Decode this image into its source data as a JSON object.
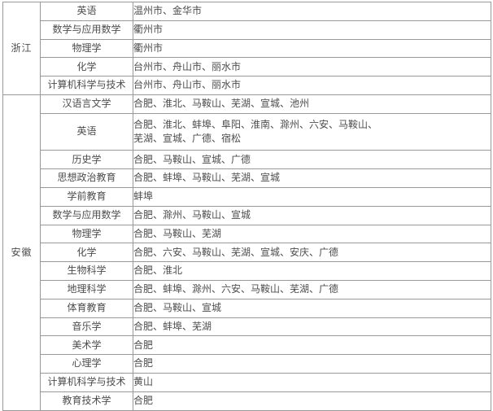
{
  "table": {
    "description": "省份-专业-城市对照表",
    "text_color": "#4d4d4d",
    "border_color": "#999999",
    "sections": [
      {
        "province": "浙江",
        "rows": [
          {
            "major": "英语",
            "cities": "温州市、金华市"
          },
          {
            "major": "数学与应用数学",
            "cities": "衢州市"
          },
          {
            "major": "物理学",
            "cities": "衢州市"
          },
          {
            "major": "化学",
            "cities": "台州市、舟山市、丽水市"
          },
          {
            "major": "计算机科学与技术",
            "cities": "台州市、舟山市、丽水市"
          }
        ]
      },
      {
        "province": "安徽",
        "rows": [
          {
            "major": "汉语言文学",
            "cities": "合肥、淮北、马鞍山、芜湖、宣城、池州"
          },
          {
            "major": "英语",
            "cities": "合肥、淮北、蚌埠、阜阳、淮南、滁州、六安、马鞍山、\n芜湖、宣城、广德、宿松",
            "tall": true
          },
          {
            "major": "历史学",
            "cities": "合肥、马鞍山、宣城、广德"
          },
          {
            "major": "思想政治教育",
            "cities": "合肥、蚌埠、马鞍山、芜湖、宣城"
          },
          {
            "major": "学前教育",
            "cities": "蚌埠"
          },
          {
            "major": "数学与应用数学",
            "cities": "合肥、滁州、马鞍山、宣城"
          },
          {
            "major": "物理学",
            "cities": "合肥、马鞍山、芜湖"
          },
          {
            "major": "化学",
            "cities": "合肥、六安、马鞍山、芜湖、宣城、安庆、广德"
          },
          {
            "major": "生物科学",
            "cities": "合肥、淮北"
          },
          {
            "major": "地理科学",
            "cities": "合肥、蚌埠、滁州、六安、马鞍山、芜湖、广德"
          },
          {
            "major": "体育教育",
            "cities": "合肥、马鞍山、宣城"
          },
          {
            "major": "音乐学",
            "cities": "合肥、蚌埠、芜湖"
          },
          {
            "major": "美术学",
            "cities": "合肥"
          },
          {
            "major": "心理学",
            "cities": "合肥"
          },
          {
            "major": "计算机科学与技术",
            "cities": "黄山"
          },
          {
            "major": "教育技术学",
            "cities": "合肥"
          }
        ]
      }
    ]
  }
}
